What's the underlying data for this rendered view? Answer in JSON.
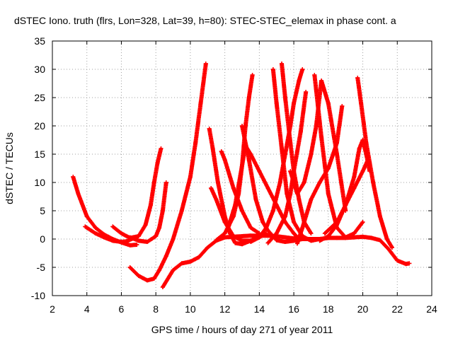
{
  "chart_data": {
    "type": "scatter",
    "title": "dSTEC Iono. truth (flrs, Lon=328, Lat=39, h=80): STEC-STEC_elemax in phase cont. a",
    "xlabel": "GPS time / hours of day 271 of year 2011",
    "ylabel": "dSTEC  / TECUs",
    "xlim": [
      2,
      24
    ],
    "ylim": [
      -10,
      35
    ],
    "xticks": [
      "2",
      "4",
      "6",
      "8",
      "10",
      "12",
      "14",
      "16",
      "18",
      "20",
      "22",
      "24"
    ],
    "yticks": [
      "-10",
      "-5",
      "0",
      "5",
      "10",
      "15",
      "20",
      "25",
      "30",
      "35"
    ],
    "grid": true,
    "marker": "plus",
    "series_color": "#ff0000",
    "series": [
      {
        "x": [
          3.2,
          3.5,
          4.0,
          4.5,
          5.0,
          5.5,
          6.0,
          6.5,
          6.9
        ],
        "y": [
          11,
          8,
          4,
          2,
          0.8,
          0,
          -0.6,
          -1.1,
          -1.0
        ]
      },
      {
        "x": [
          3.9,
          4.5,
          5.0,
          5.5,
          6.0,
          6.3,
          6.6,
          6.8
        ],
        "y": [
          2.2,
          1,
          0.3,
          -0.3,
          -0.5,
          -0.4,
          0,
          0.3
        ]
      },
      {
        "x": [
          5.5,
          6.0,
          6.5,
          7.0,
          7.4,
          7.7,
          7.9,
          8.1,
          8.3
        ],
        "y": [
          2.2,
          1,
          0.2,
          0.5,
          2.5,
          6,
          10,
          13.5,
          16
        ]
      },
      {
        "x": [
          6.5,
          7.0,
          7.5,
          8.0,
          8.2,
          8.4,
          8.6
        ],
        "y": [
          0.3,
          -0.3,
          -0.5,
          0.5,
          2,
          5,
          10
        ]
      },
      {
        "x": [
          6.5,
          7.0,
          7.5,
          7.9,
          8.2,
          8.6,
          9.0,
          9.5,
          10.0,
          10.3,
          10.6,
          10.9
        ],
        "y": [
          -5,
          -6.5,
          -7.3,
          -7,
          -5.5,
          -3,
          0,
          5,
          11,
          17,
          24,
          31
        ]
      },
      {
        "x": [
          8.4,
          9.0,
          9.5,
          10.0,
          10.5,
          11.0,
          11.5,
          12.0,
          12.5,
          13.0,
          13.5,
          14.0,
          14.5,
          15.0,
          15.5,
          16.0,
          16.5,
          17.0,
          17.5,
          18.0,
          18.5,
          19.0,
          19.5,
          20.0,
          20.5,
          21.0,
          21.5,
          22.0,
          22.5,
          22.7
        ],
        "y": [
          -8.5,
          -5.5,
          -4.3,
          -4,
          -3.2,
          -1.5,
          -0.3,
          0.3,
          0.4,
          0.5,
          0.6,
          0.6,
          0.6,
          0.5,
          0.3,
          0.1,
          0,
          0,
          0,
          0.2,
          0.2,
          0.2,
          0.3,
          0.4,
          0.2,
          -0.2,
          -1.8,
          -3.8,
          -4.4,
          -4.3
        ]
      },
      {
        "x": [
          11.1,
          11.3,
          11.6,
          12.0,
          12.3,
          12.6,
          13.0,
          13.5,
          14.0
        ],
        "y": [
          19.5,
          16,
          10,
          4,
          1,
          -0.7,
          -0.9,
          -0.3,
          0.5
        ]
      },
      {
        "x": [
          11.2,
          11.5,
          12.0,
          12.5,
          13.0,
          13.5,
          14.0,
          14.4
        ],
        "y": [
          9,
          7,
          3,
          0.5,
          -0.3,
          -0.3,
          0.3,
          1
        ]
      },
      {
        "x": [
          11.8,
          12.0,
          12.5,
          13.0,
          13.5,
          14.0
        ],
        "y": [
          15.5,
          14,
          9,
          5,
          2,
          1
        ]
      },
      {
        "x": [
          11.5,
          12.0,
          12.5,
          12.8,
          13.0,
          13.2,
          13.4,
          13.6
        ],
        "y": [
          -0.2,
          1,
          4,
          8,
          13,
          20,
          25,
          29
        ]
      },
      {
        "x": [
          12.2,
          12.6,
          13.0,
          13.2,
          13.5,
          14.0,
          14.5,
          15.0,
          15.5,
          16.0,
          16.3
        ],
        "y": [
          2,
          6,
          13,
          16.5,
          15,
          12,
          9,
          6,
          3,
          1,
          0
        ]
      },
      {
        "x": [
          13.0,
          13.4,
          13.8,
          14.2,
          14.5,
          15.0,
          15.5,
          16.0,
          16.5
        ],
        "y": [
          20,
          14,
          7,
          3,
          1.5,
          -0.2,
          -0.5,
          -0.3,
          0
        ]
      },
      {
        "x": [
          13.5,
          14.0,
          14.4,
          14.8,
          15.2,
          15.5,
          15.8,
          16.0,
          16.3,
          16.5
        ],
        "y": [
          -0.5,
          0.3,
          2,
          5,
          10,
          15,
          20,
          24,
          28,
          30
        ]
      },
      {
        "x": [
          14.8,
          15.0,
          15.3,
          15.6,
          16.0,
          16.5,
          17.0,
          17.5
        ],
        "y": [
          30,
          24,
          16,
          8,
          3,
          0.5,
          -0.3,
          0
        ]
      },
      {
        "x": [
          15.3,
          15.5,
          15.8,
          16.0,
          16.3,
          16.6,
          17.0
        ],
        "y": [
          31,
          25,
          17,
          12,
          7,
          3,
          1
        ]
      },
      {
        "x": [
          14.5,
          15.0,
          15.5,
          15.8,
          16.0,
          16.4,
          16.7
        ],
        "y": [
          -0.7,
          1,
          4,
          8,
          12,
          19,
          26
        ]
      },
      {
        "x": [
          15.8,
          16.2,
          16.6,
          17.0,
          17.3,
          17.6,
          18.0,
          18.5,
          19.0
        ],
        "y": [
          12,
          8,
          10,
          15,
          20,
          28,
          24,
          15,
          5
        ]
      },
      {
        "x": [
          16.2,
          16.5,
          17.0,
          17.5,
          18.0,
          18.5,
          18.8
        ],
        "y": [
          -0.8,
          2,
          7,
          10,
          12.5,
          17,
          23.5
        ]
      },
      {
        "x": [
          17.2,
          17.6,
          18.0,
          18.5,
          19.0,
          19.5,
          20.0
        ],
        "y": [
          29,
          18,
          8,
          2,
          0.3,
          1,
          3
        ]
      },
      {
        "x": [
          17.5,
          18.0,
          18.5,
          19.0,
          19.5,
          19.8,
          20.0,
          20.2,
          20.4
        ],
        "y": [
          -0.3,
          0.5,
          2.5,
          6,
          11,
          16,
          17.5,
          15,
          12
        ]
      },
      {
        "x": [
          17.8,
          18.5,
          19.0,
          19.5,
          20.0,
          20.3
        ],
        "y": [
          1,
          3,
          6,
          9,
          12,
          14
        ]
      },
      {
        "x": [
          19.7,
          19.9,
          20.2,
          20.6,
          21.0,
          21.4,
          21.7
        ],
        "y": [
          28.5,
          24,
          17,
          10,
          4,
          0,
          -1.5
        ]
      }
    ]
  }
}
